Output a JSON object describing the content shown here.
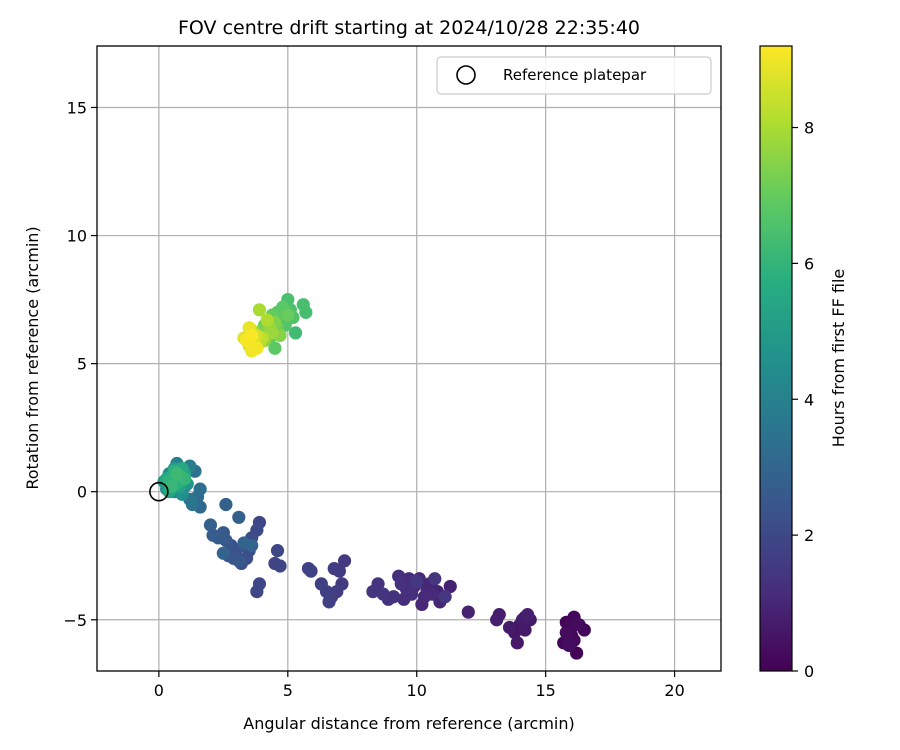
{
  "chart_data": {
    "type": "scatter",
    "title": "FOV centre drift starting at 2024/10/28 22:35:40",
    "xlabel": "Angular distance from reference (arcmin)",
    "ylabel": "Rotation from reference (arcmin)",
    "xlim": [
      -2.4,
      21.8
    ],
    "ylim": [
      -7,
      17.4
    ],
    "x_ticks": [
      0,
      5,
      10,
      15,
      20
    ],
    "y_ticks": [
      -5,
      0,
      5,
      10,
      15
    ],
    "x_tick_labels": [
      "0",
      "5",
      "10",
      "15",
      "20"
    ],
    "y_tick_labels": [
      "−5",
      "0",
      "5",
      "10",
      "15"
    ],
    "grid": true,
    "colormap": "viridis",
    "colorbar": {
      "label": "Hours from first FF file",
      "min": 0,
      "max": 9.2,
      "ticks": [
        0,
        2,
        4,
        6,
        8
      ],
      "tick_labels": [
        "0",
        "2",
        "4",
        "6",
        "8"
      ]
    },
    "legend": {
      "position": "top-right",
      "entries": [
        {
          "label": "Reference platepar",
          "marker": "open-circle",
          "color": "#000000"
        }
      ]
    },
    "reference_point": {
      "x": 0,
      "y": 0
    },
    "series": [
      {
        "points": [
          {
            "x": 15.8,
            "y": -5.1,
            "t": 0.05
          },
          {
            "x": 16.0,
            "y": -5.6,
            "t": 0.08
          },
          {
            "x": 16.2,
            "y": -6.3,
            "t": 0.1
          },
          {
            "x": 15.7,
            "y": -5.9,
            "t": 0.12
          },
          {
            "x": 16.5,
            "y": -5.4,
            "t": 0.15
          },
          {
            "x": 16.1,
            "y": -4.9,
            "t": 0.18
          },
          {
            "x": 15.9,
            "y": -5.3,
            "t": 0.2
          },
          {
            "x": 16.1,
            "y": -5.8,
            "t": 0.22
          },
          {
            "x": 15.8,
            "y": -5.5,
            "t": 0.25
          },
          {
            "x": 16.3,
            "y": -5.2,
            "t": 0.3
          },
          {
            "x": 15.9,
            "y": -6.0,
            "t": 0.32
          },
          {
            "x": 14.2,
            "y": -4.9,
            "t": 0.45
          },
          {
            "x": 14.0,
            "y": -5.2,
            "t": 0.5
          },
          {
            "x": 13.8,
            "y": -5.5,
            "t": 0.55
          },
          {
            "x": 14.4,
            "y": -5.0,
            "t": 0.6
          },
          {
            "x": 13.9,
            "y": -5.9,
            "t": 0.62
          },
          {
            "x": 14.2,
            "y": -5.4,
            "t": 0.65
          },
          {
            "x": 13.6,
            "y": -5.3,
            "t": 0.68
          },
          {
            "x": 14.1,
            "y": -5.0,
            "t": 0.7
          },
          {
            "x": 13.2,
            "y": -4.8,
            "t": 0.75
          },
          {
            "x": 13.1,
            "y": -5.0,
            "t": 0.78
          },
          {
            "x": 14.3,
            "y": -4.8,
            "t": 0.8
          },
          {
            "x": 12.0,
            "y": -4.7,
            "t": 0.85
          },
          {
            "x": 11.3,
            "y": -3.7,
            "t": 0.88
          },
          {
            "x": 11.0,
            "y": -4.1,
            "t": 0.9
          },
          {
            "x": 10.8,
            "y": -3.9,
            "t": 0.92
          },
          {
            "x": 10.5,
            "y": -3.6,
            "t": 0.95
          },
          {
            "x": 10.9,
            "y": -4.3,
            "t": 0.98
          },
          {
            "x": 10.2,
            "y": -4.4,
            "t": 1.0
          },
          {
            "x": 10.4,
            "y": -3.8,
            "t": 1.02
          },
          {
            "x": 10.1,
            "y": -3.4,
            "t": 1.05
          },
          {
            "x": 10.6,
            "y": -4.0,
            "t": 1.08
          },
          {
            "x": 10.3,
            "y": -4.1,
            "t": 1.1
          },
          {
            "x": 9.9,
            "y": -3.7,
            "t": 1.12
          },
          {
            "x": 9.7,
            "y": -3.4,
            "t": 1.15
          },
          {
            "x": 9.5,
            "y": -4.2,
            "t": 1.18
          },
          {
            "x": 9.8,
            "y": -4.0,
            "t": 1.2
          },
          {
            "x": 9.6,
            "y": -3.8,
            "t": 1.22
          },
          {
            "x": 9.3,
            "y": -3.3,
            "t": 1.25
          },
          {
            "x": 9.4,
            "y": -3.6,
            "t": 1.28
          },
          {
            "x": 9.1,
            "y": -4.1,
            "t": 1.3
          },
          {
            "x": 8.9,
            "y": -4.2,
            "t": 1.32
          },
          {
            "x": 8.5,
            "y": -3.6,
            "t": 1.35
          },
          {
            "x": 8.7,
            "y": -4.0,
            "t": 1.38
          },
          {
            "x": 8.3,
            "y": -3.9,
            "t": 1.4
          },
          {
            "x": 10.7,
            "y": -3.4,
            "t": 1.42
          },
          {
            "x": 11.1,
            "y": -4.1,
            "t": 1.45
          },
          {
            "x": 10.0,
            "y": -3.5,
            "t": 1.48
          },
          {
            "x": 7.2,
            "y": -2.7,
            "t": 1.55
          },
          {
            "x": 7.0,
            "y": -3.1,
            "t": 1.58
          },
          {
            "x": 7.1,
            "y": -3.6,
            "t": 1.6
          },
          {
            "x": 6.9,
            "y": -3.9,
            "t": 1.62
          },
          {
            "x": 6.8,
            "y": -3.0,
            "t": 1.65
          },
          {
            "x": 6.7,
            "y": -4.1,
            "t": 1.68
          },
          {
            "x": 6.5,
            "y": -3.9,
            "t": 1.7
          },
          {
            "x": 6.3,
            "y": -3.6,
            "t": 1.72
          },
          {
            "x": 6.6,
            "y": -4.3,
            "t": 1.75
          },
          {
            "x": 5.9,
            "y": -3.1,
            "t": 1.78
          },
          {
            "x": 5.8,
            "y": -3.0,
            "t": 1.8
          },
          {
            "x": 4.7,
            "y": -2.9,
            "t": 1.88
          },
          {
            "x": 4.5,
            "y": -2.8,
            "t": 1.9
          },
          {
            "x": 4.6,
            "y": -2.3,
            "t": 1.92
          },
          {
            "x": 3.9,
            "y": -3.6,
            "t": 1.95
          },
          {
            "x": 3.8,
            "y": -3.9,
            "t": 1.98
          },
          {
            "x": 3.9,
            "y": -1.2,
            "t": 2.0
          },
          {
            "x": 3.8,
            "y": -1.5,
            "t": 2.05
          },
          {
            "x": 3.6,
            "y": -1.8,
            "t": 2.1
          },
          {
            "x": 3.5,
            "y": -2.3,
            "t": 2.15
          },
          {
            "x": 3.4,
            "y": -2.6,
            "t": 2.2
          },
          {
            "x": 3.2,
            "y": -2.8,
            "t": 2.25
          },
          {
            "x": 3.0,
            "y": -2.3,
            "t": 2.3
          },
          {
            "x": 2.8,
            "y": -2.1,
            "t": 2.35
          },
          {
            "x": 2.7,
            "y": -2.5,
            "t": 2.4
          },
          {
            "x": 2.9,
            "y": -2.6,
            "t": 2.45
          },
          {
            "x": 3.1,
            "y": -2.7,
            "t": 2.5
          },
          {
            "x": 2.6,
            "y": -1.9,
            "t": 2.55
          },
          {
            "x": 2.5,
            "y": -1.6,
            "t": 2.6
          },
          {
            "x": 2.3,
            "y": -1.8,
            "t": 2.65
          },
          {
            "x": 2.1,
            "y": -1.7,
            "t": 2.7
          },
          {
            "x": 2.0,
            "y": -1.3,
            "t": 2.75
          },
          {
            "x": 2.6,
            "y": -0.5,
            "t": 2.8
          },
          {
            "x": 3.1,
            "y": -1.0,
            "t": 2.85
          },
          {
            "x": 3.3,
            "y": -2.0,
            "t": 2.9
          },
          {
            "x": 2.5,
            "y": -2.4,
            "t": 2.95
          },
          {
            "x": 3.6,
            "y": -2.1,
            "t": 3.0
          },
          {
            "x": 1.6,
            "y": -0.6,
            "t": 3.1
          },
          {
            "x": 1.5,
            "y": -0.2,
            "t": 3.2
          },
          {
            "x": 1.6,
            "y": 0.1,
            "t": 3.3
          },
          {
            "x": 1.4,
            "y": 0.8,
            "t": 3.4
          },
          {
            "x": 1.3,
            "y": -0.5,
            "t": 3.5
          },
          {
            "x": 1.2,
            "y": -0.3,
            "t": 3.6
          },
          {
            "x": 1.0,
            "y": 0.2,
            "t": 3.7
          },
          {
            "x": 0.9,
            "y": 0.6,
            "t": 3.8
          },
          {
            "x": 1.2,
            "y": 1.0,
            "t": 3.9
          },
          {
            "x": 0.7,
            "y": 1.1,
            "t": 4.0
          },
          {
            "x": 0.8,
            "y": 0.4,
            "t": 4.1
          },
          {
            "x": 0.6,
            "y": 0.0,
            "t": 4.2
          },
          {
            "x": 0.5,
            "y": 0.3,
            "t": 4.3
          },
          {
            "x": 0.4,
            "y": 0.7,
            "t": 4.4
          },
          {
            "x": 0.3,
            "y": 0.1,
            "t": 4.5
          },
          {
            "x": 0.9,
            "y": -0.1,
            "t": 4.6
          },
          {
            "x": 1.1,
            "y": 0.3,
            "t": 4.7
          },
          {
            "x": 0.7,
            "y": 0.5,
            "t": 4.8
          },
          {
            "x": 0.2,
            "y": 0.4,
            "t": 4.9
          },
          {
            "x": 0.6,
            "y": 0.9,
            "t": 5.0
          },
          {
            "x": 1.0,
            "y": 0.7,
            "t": 5.1
          },
          {
            "x": 0.8,
            "y": 0.2,
            "t": 5.2
          },
          {
            "x": 0.4,
            "y": 0.0,
            "t": 5.3
          },
          {
            "x": 0.5,
            "y": 0.6,
            "t": 5.4
          },
          {
            "x": 0.9,
            "y": 0.9,
            "t": 5.5
          },
          {
            "x": 0.3,
            "y": 0.5,
            "t": 5.6
          },
          {
            "x": 0.7,
            "y": 0.3,
            "t": 5.7
          },
          {
            "x": 0.6,
            "y": 0.8,
            "t": 5.8
          },
          {
            "x": 0.4,
            "y": 0.4,
            "t": 5.9
          },
          {
            "x": 1.0,
            "y": 0.5,
            "t": 6.0
          },
          {
            "x": 0.8,
            "y": 0.6,
            "t": 6.05
          },
          {
            "x": 0.5,
            "y": 0.2,
            "t": 6.1
          },
          {
            "x": 0.7,
            "y": 0.7,
            "t": 6.2
          },
          {
            "x": 5.3,
            "y": 6.2,
            "t": 6.3
          },
          {
            "x": 5.7,
            "y": 7.0,
            "t": 6.4
          },
          {
            "x": 5.6,
            "y": 7.3,
            "t": 6.45
          },
          {
            "x": 5.0,
            "y": 7.5,
            "t": 6.5
          },
          {
            "x": 5.1,
            "y": 7.1,
            "t": 6.55
          },
          {
            "x": 5.2,
            "y": 6.8,
            "t": 6.6
          },
          {
            "x": 4.9,
            "y": 6.5,
            "t": 6.65
          },
          {
            "x": 4.7,
            "y": 6.6,
            "t": 6.7
          },
          {
            "x": 4.6,
            "y": 7.0,
            "t": 6.75
          },
          {
            "x": 4.8,
            "y": 7.2,
            "t": 6.8
          },
          {
            "x": 4.5,
            "y": 5.6,
            "t": 6.85
          },
          {
            "x": 4.3,
            "y": 6.0,
            "t": 6.9
          },
          {
            "x": 4.1,
            "y": 6.5,
            "t": 6.95
          },
          {
            "x": 4.4,
            "y": 6.9,
            "t": 7.0
          },
          {
            "x": 5.0,
            "y": 6.9,
            "t": 7.05
          },
          {
            "x": 4.6,
            "y": 6.4,
            "t": 7.1
          },
          {
            "x": 4.2,
            "y": 6.2,
            "t": 7.2
          },
          {
            "x": 4.0,
            "y": 6.3,
            "t": 7.3
          },
          {
            "x": 4.5,
            "y": 6.6,
            "t": 7.4
          },
          {
            "x": 4.7,
            "y": 6.1,
            "t": 7.5
          },
          {
            "x": 4.1,
            "y": 5.9,
            "t": 7.6
          },
          {
            "x": 4.3,
            "y": 6.4,
            "t": 7.7
          },
          {
            "x": 4.4,
            "y": 6.2,
            "t": 7.8
          },
          {
            "x": 3.9,
            "y": 7.1,
            "t": 8.0
          },
          {
            "x": 4.2,
            "y": 6.7,
            "t": 8.1
          },
          {
            "x": 3.9,
            "y": 5.8,
            "t": 8.2
          },
          {
            "x": 4.0,
            "y": 6.0,
            "t": 8.3
          },
          {
            "x": 3.6,
            "y": 6.3,
            "t": 8.4
          },
          {
            "x": 3.8,
            "y": 6.1,
            "t": 8.5
          },
          {
            "x": 3.5,
            "y": 5.7,
            "t": 8.6
          },
          {
            "x": 3.7,
            "y": 5.9,
            "t": 8.7
          },
          {
            "x": 3.3,
            "y": 6.0,
            "t": 8.8
          },
          {
            "x": 3.5,
            "y": 6.4,
            "t": 8.9
          },
          {
            "x": 3.6,
            "y": 5.5,
            "t": 9.0
          },
          {
            "x": 3.8,
            "y": 5.6,
            "t": 9.05
          },
          {
            "x": 3.4,
            "y": 5.9,
            "t": 9.1
          },
          {
            "x": 3.6,
            "y": 6.1,
            "t": 9.15
          }
        ]
      }
    ]
  }
}
